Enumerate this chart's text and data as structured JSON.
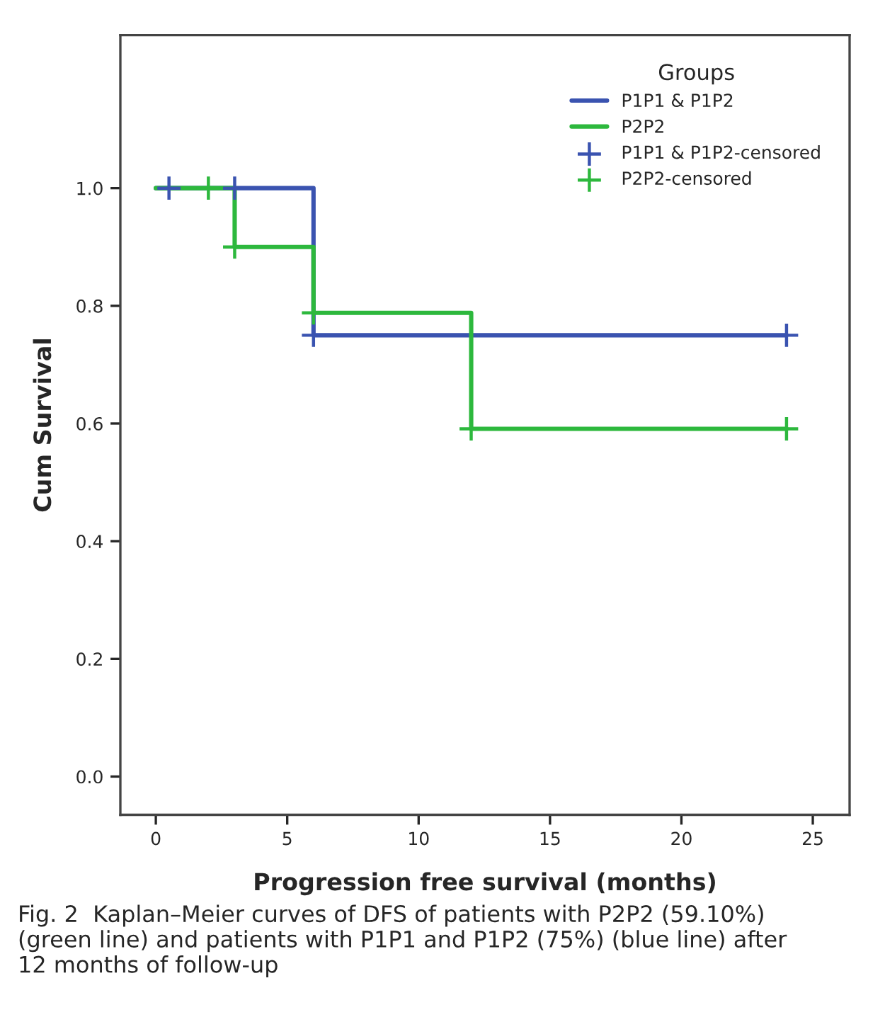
{
  "chart_data": {
    "type": "step",
    "xlabel": "Progression free survival (months)",
    "ylabel": "Cum Survival",
    "legend_title": "Groups",
    "series": [
      {
        "name": "P1P1 & P1P2",
        "color": "#3a53b0",
        "x": [
          0,
          6,
          24
        ],
        "values": [
          1.0,
          0.75,
          0.75
        ]
      },
      {
        "name": "P2P2",
        "color": "#2db83d",
        "x": [
          0,
          3,
          6,
          12,
          24
        ],
        "values": [
          1.0,
          0.9,
          0.788,
          0.591,
          0.591
        ]
      },
      {
        "name": "P1P1 & P1P2-censored",
        "type": "scatter",
        "marker": "cross",
        "color": "#3a53b0",
        "x": [
          0.5,
          3,
          6,
          24
        ],
        "values": [
          1.0,
          1.0,
          0.75,
          0.75
        ]
      },
      {
        "name": "P2P2-censored",
        "type": "scatter",
        "marker": "cross",
        "color": "#2db83d",
        "x": [
          2,
          3,
          6,
          12,
          24
        ],
        "values": [
          1.0,
          0.9,
          0.788,
          0.591,
          0.591
        ]
      }
    ],
    "xlim": [
      -1.35,
      26.4
    ],
    "ylim": [
      -0.065,
      1.26
    ],
    "xticks": [
      0,
      5,
      10,
      15,
      20,
      25
    ],
    "yticks": [
      {
        "value": 0,
        "label": "0.0"
      },
      {
        "value": 0.2,
        "label": "0.2"
      },
      {
        "value": 0.4,
        "label": "0.4"
      },
      {
        "value": 0.6,
        "label": "0.6"
      },
      {
        "value": 0.8,
        "label": "0.8"
      },
      {
        "value": 1.0,
        "label": "1.0"
      }
    ],
    "grid": false,
    "legend": "top right",
    "annotations": [
      "Fig. 2  Kaplan–Meier curves of DFS of patients with P2P2 (59.10%) (green line) and patients with P1P1 and P1P2 (75%) (blue line) after 12 months of follow-up"
    ]
  }
}
